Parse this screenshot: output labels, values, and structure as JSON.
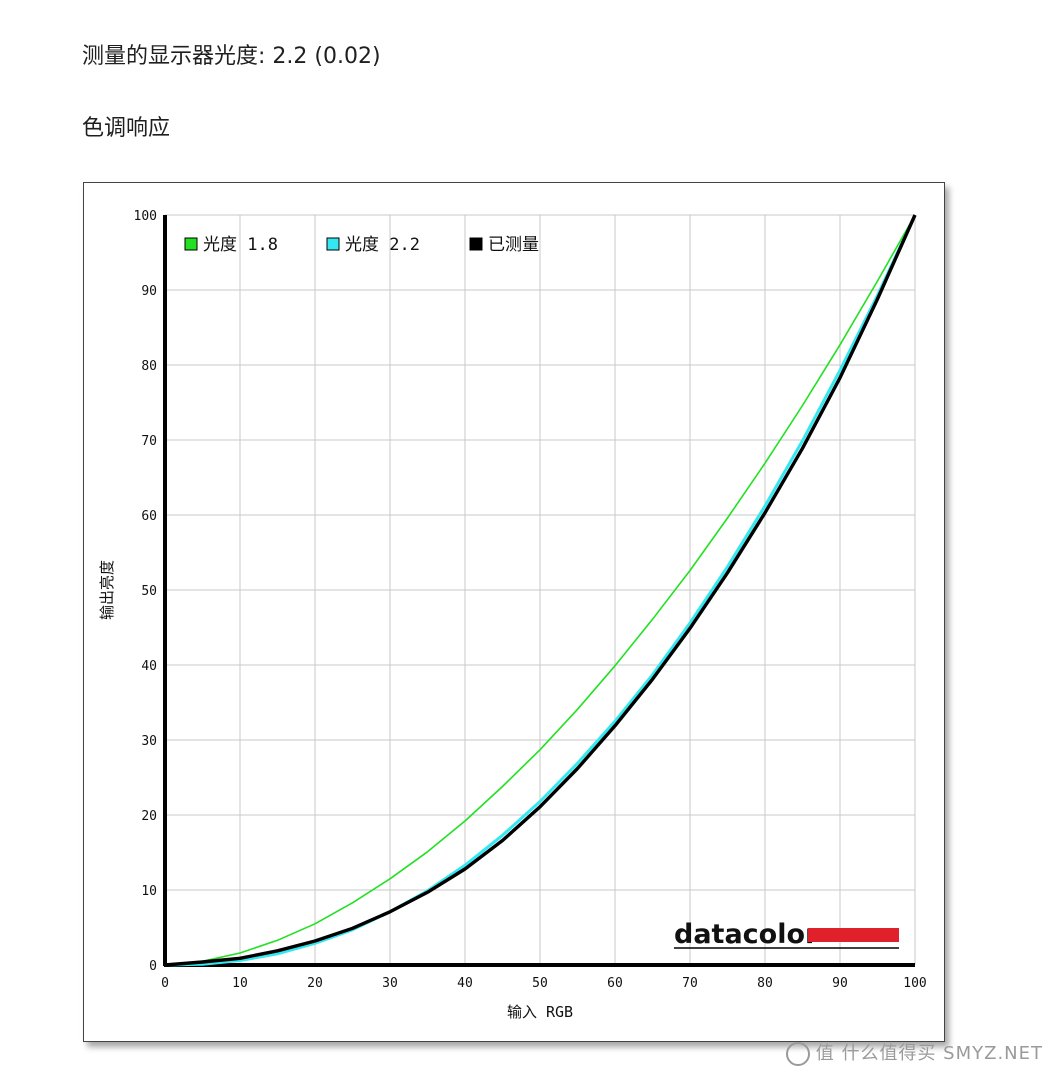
{
  "header": {
    "gamma_text": "测量的显示器光度: 2.2 (0.02)",
    "section_title": "色调响应"
  },
  "watermark": {
    "text": "值 什么值得买 SMYZ.NET"
  },
  "chart_data": {
    "type": "line",
    "xlabel": "输入 RGB",
    "ylabel": "输出亮度",
    "xlim": [
      0,
      100
    ],
    "ylim": [
      0,
      100
    ],
    "xticks": [
      0,
      10,
      20,
      30,
      40,
      50,
      60,
      70,
      80,
      90,
      100
    ],
    "yticks": [
      0,
      10,
      20,
      30,
      40,
      50,
      60,
      70,
      80,
      90,
      100
    ],
    "grid": true,
    "legend_position": "top-left",
    "brand": "datacolor",
    "colors": {
      "gamma18": "#22e022",
      "gamma22": "#33e8f0",
      "measured": "#000000",
      "brand_bar": "#e0202a"
    },
    "x": [
      0,
      5,
      10,
      15,
      20,
      25,
      30,
      35,
      40,
      45,
      50,
      55,
      60,
      65,
      70,
      75,
      80,
      85,
      90,
      95,
      100
    ],
    "series": [
      {
        "name": "光度 1.8",
        "color": "#22e022",
        "values": [
          0,
          0.5,
          1.6,
          3.3,
          5.5,
          8.3,
          11.5,
          15.1,
          19.2,
          23.8,
          28.7,
          34.1,
          39.9,
          46.1,
          52.6,
          59.6,
          66.9,
          74.6,
          82.7,
          91.2,
          100
        ]
      },
      {
        "name": "光度 2.2",
        "color": "#33e8f0",
        "values": [
          0,
          0.1,
          0.6,
          1.5,
          2.9,
          4.7,
          7.1,
          9.9,
          13.3,
          17.3,
          21.8,
          26.9,
          32.5,
          38.7,
          45.6,
          53.1,
          61.2,
          69.9,
          79.3,
          89.3,
          100
        ]
      },
      {
        "name": "已测量",
        "color": "#000000",
        "values": [
          0,
          0.4,
          0.9,
          1.9,
          3.2,
          4.9,
          7.1,
          9.7,
          12.8,
          16.6,
          21.1,
          26.2,
          31.9,
          38.1,
          44.9,
          52.3,
          60.3,
          68.9,
          78.3,
          88.8,
          100
        ]
      }
    ]
  }
}
